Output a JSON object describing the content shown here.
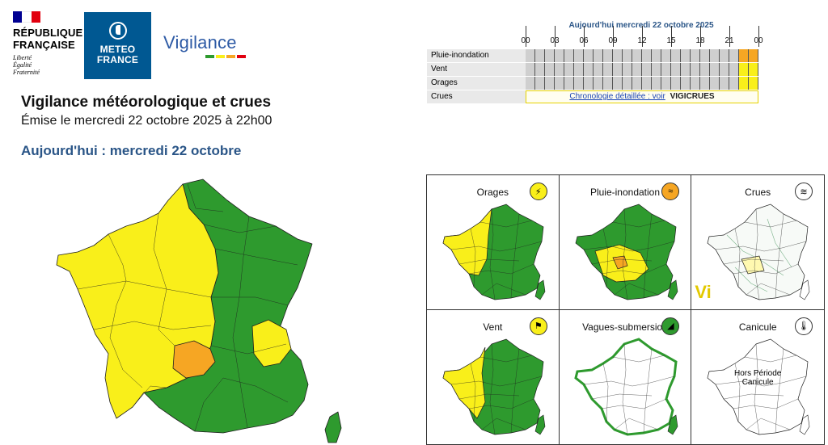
{
  "header": {
    "republic": {
      "line1": "RÉPUBLIQUE",
      "line2": "FRANÇAISE",
      "motto1": "Liberté",
      "motto2": "Égalité",
      "motto3": "Fraternité"
    },
    "meteofrance": {
      "line1": "METEO",
      "line2": "FRANCE"
    },
    "vigilance_logo": "Vigilance",
    "colors": {
      "rf_blue": "#000091",
      "rf_red": "#e1000f",
      "mf_blue": "#005892",
      "vig_blue": "#2d5aa5"
    }
  },
  "titles": {
    "main": "Vigilance météorologique et crues",
    "issued": "Émise le mercredi 22 octobre 2025 à 22h00",
    "day": "Aujourd'hui : mercredi 22 octobre"
  },
  "timeline": {
    "date": "Aujourd'hui mercredi 22 octobre 2025",
    "hours": [
      "00",
      "03",
      "06",
      "09",
      "12",
      "15",
      "18",
      "21",
      "00"
    ],
    "rows": [
      {
        "label": "Pluie-inondation",
        "cells": [
          "grey",
          "grey",
          "grey",
          "grey",
          "grey",
          "grey",
          "grey",
          "grey",
          "grey",
          "grey",
          "grey",
          "grey",
          "grey",
          "grey",
          "grey",
          "grey",
          "grey",
          "grey",
          "grey",
          "grey",
          "grey",
          "grey",
          "orange",
          "orange"
        ]
      },
      {
        "label": "Vent",
        "cells": [
          "grey",
          "grey",
          "grey",
          "grey",
          "grey",
          "grey",
          "grey",
          "grey",
          "grey",
          "grey",
          "grey",
          "grey",
          "grey",
          "grey",
          "grey",
          "grey",
          "grey",
          "grey",
          "grey",
          "grey",
          "grey",
          "grey",
          "yellow",
          "yellow"
        ]
      },
      {
        "label": "Orages",
        "cells": [
          "grey",
          "grey",
          "grey",
          "grey",
          "grey",
          "grey",
          "grey",
          "grey",
          "grey",
          "grey",
          "grey",
          "grey",
          "grey",
          "grey",
          "grey",
          "grey",
          "grey",
          "grey",
          "grey",
          "grey",
          "grey",
          "grey",
          "yellow",
          "yellow"
        ]
      }
    ],
    "crues": {
      "label": "Crues",
      "link_text": "Chronologie détaillée : voir",
      "vigicrues": "VIGICRUES"
    },
    "colors": {
      "grey": "#cfcfcf",
      "yellow": "#f9ef1a",
      "orange": "#f6a623",
      "green": "#2e9a2e"
    }
  },
  "panels": [
    {
      "title": "Orages",
      "icon": "lightning-icon",
      "glyph": "⚡",
      "icon_color": "#f9ef1a"
    },
    {
      "title": "Pluie-inondation",
      "icon": "rain-icon",
      "glyph": "≈",
      "icon_color": "#f6a623"
    },
    {
      "title": "Crues",
      "icon": "waves-icon",
      "glyph": "≋",
      "icon_color": "#ffffff"
    },
    {
      "title": "Vent",
      "icon": "wind-icon",
      "glyph": "⚑",
      "icon_color": "#f9ef1a"
    },
    {
      "title": "Vagues-submersion",
      "icon": "wave-submersion-icon",
      "glyph": "◢",
      "icon_color": "#2e9a2e"
    },
    {
      "title": "Canicule",
      "icon": "thermometer-icon",
      "glyph": "🌡",
      "icon_color": "#ffffff",
      "note_line1": "Hors Période",
      "note_line2": "Canicule"
    }
  ]
}
